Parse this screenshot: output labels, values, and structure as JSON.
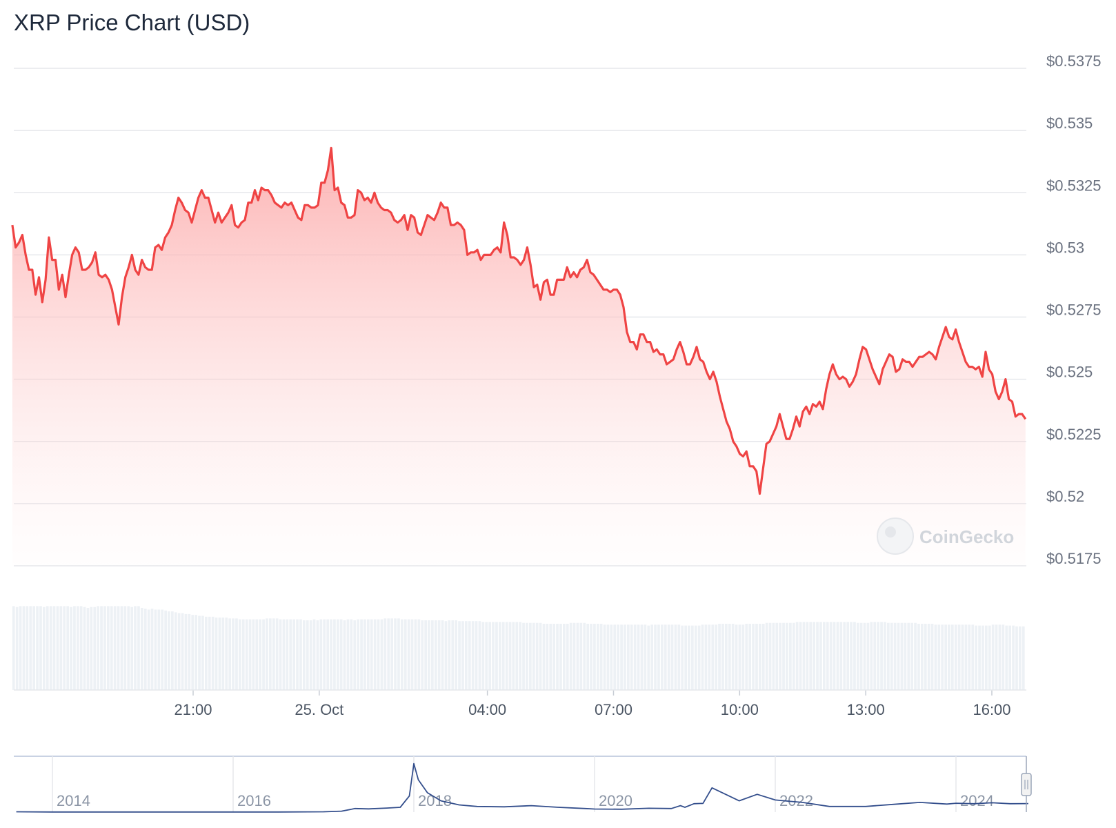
{
  "chart_data": {
    "type": "line",
    "title": "XRP Price Chart (USD)",
    "watermark": "CoinGecko",
    "ylim": [
      0.5175,
      0.5375
    ],
    "y_ticks": [
      "$0.5375",
      "$0.535",
      "$0.5325",
      "$0.53",
      "$0.5275",
      "$0.525",
      "$0.5225",
      "$0.52",
      "$0.5175"
    ],
    "x_range_hours": [
      -4.3,
      19.8
    ],
    "x_ticks": [
      {
        "label": "21:00",
        "hour": 21
      },
      {
        "label": "25. Oct",
        "hour": 24
      },
      {
        "label": "04:00",
        "hour": 28
      },
      {
        "label": "07:00",
        "hour": 31
      },
      {
        "label": "10:00",
        "hour": 34
      },
      {
        "label": "13:00",
        "hour": 37
      },
      {
        "label": "16:00",
        "hour": 40
      }
    ],
    "x_start_hour": 16.7,
    "x_end_hour": 40.8,
    "colors": {
      "line": "#ef4444",
      "fill": "#fecaca",
      "grid": "#e5e7eb",
      "volume": "#edf1f5",
      "navigator": "#334e8c"
    },
    "series": [
      {
        "values": [
          0.5312,
          0.5303,
          0.5305,
          0.5308,
          0.53,
          0.5294,
          0.5294,
          0.5284,
          0.5291,
          0.5281,
          0.529,
          0.5307,
          0.5298,
          0.5298,
          0.5286,
          0.5292,
          0.5283,
          0.5292,
          0.53,
          0.5303,
          0.5301,
          0.5294,
          0.5294,
          0.5295,
          0.5297,
          0.5301,
          0.5292,
          0.5291,
          0.5292,
          0.529,
          0.5286,
          0.5279,
          0.5272,
          0.5283,
          0.5291,
          0.5295,
          0.53,
          0.5294,
          0.5292,
          0.5298,
          0.5295,
          0.5294,
          0.5294,
          0.5303,
          0.5304,
          0.5302,
          0.5307,
          0.5309,
          0.5312,
          0.5318,
          0.5323,
          0.5321,
          0.5318,
          0.5317,
          0.5313,
          0.5318,
          0.5323,
          0.5326,
          0.5323,
          0.5323,
          0.5318,
          0.5313,
          0.5317,
          0.5313,
          0.5315,
          0.5317,
          0.532,
          0.5312,
          0.5311,
          0.5313,
          0.5314,
          0.5321,
          0.5321,
          0.5326,
          0.5322,
          0.5327,
          0.5326,
          0.5326,
          0.5324,
          0.5321,
          0.532,
          0.5319,
          0.5321,
          0.532,
          0.5321,
          0.5318,
          0.5315,
          0.5314,
          0.532,
          0.532,
          0.5319,
          0.5319,
          0.532,
          0.5329,
          0.5329,
          0.5334,
          0.5343,
          0.5326,
          0.5327,
          0.5321,
          0.532,
          0.5315,
          0.5315,
          0.5316,
          0.5326,
          0.5325,
          0.5322,
          0.5323,
          0.5321,
          0.5325,
          0.5321,
          0.5319,
          0.5318,
          0.5318,
          0.5317,
          0.5314,
          0.5313,
          0.5314,
          0.5316,
          0.531,
          0.5316,
          0.5315,
          0.5309,
          0.5308,
          0.5312,
          0.5316,
          0.5315,
          0.5314,
          0.5317,
          0.5321,
          0.5319,
          0.5319,
          0.5312,
          0.5312,
          0.5313,
          0.5312,
          0.531,
          0.53,
          0.5301,
          0.5301,
          0.5302,
          0.5298,
          0.53,
          0.53,
          0.53,
          0.5302,
          0.5303,
          0.5301,
          0.5313,
          0.5308,
          0.5299,
          0.5299,
          0.5298,
          0.5296,
          0.5298,
          0.5303,
          0.5296,
          0.5287,
          0.5288,
          0.5282,
          0.5289,
          0.529,
          0.5284,
          0.5284,
          0.529,
          0.529,
          0.529,
          0.5295,
          0.5291,
          0.5293,
          0.5291,
          0.5294,
          0.5295,
          0.5298,
          0.5293,
          0.5292,
          0.529,
          0.5288,
          0.5286,
          0.5286,
          0.5285,
          0.5286,
          0.5286,
          0.5284,
          0.5279,
          0.5269,
          0.5265,
          0.5265,
          0.5262,
          0.5268,
          0.5268,
          0.5265,
          0.5265,
          0.5261,
          0.5262,
          0.526,
          0.526,
          0.5256,
          0.5257,
          0.5258,
          0.5262,
          0.5265,
          0.5261,
          0.5256,
          0.5256,
          0.5259,
          0.5263,
          0.5258,
          0.5257,
          0.5253,
          0.525,
          0.5253,
          0.5249,
          0.5243,
          0.5238,
          0.5233,
          0.523,
          0.5225,
          0.5223,
          0.522,
          0.5219,
          0.5221,
          0.5215,
          0.5215,
          0.5213,
          0.5204,
          0.5214,
          0.5224,
          0.5225,
          0.5228,
          0.5231,
          0.5236,
          0.5231,
          0.5226,
          0.5226,
          0.523,
          0.5235,
          0.5231,
          0.5237,
          0.5239,
          0.5236,
          0.524,
          0.5239,
          0.5241,
          0.5238,
          0.5246,
          0.5252,
          0.5256,
          0.5252,
          0.525,
          0.5251,
          0.525,
          0.5247,
          0.5249,
          0.5252,
          0.5258,
          0.5263,
          0.5262,
          0.5258,
          0.5254,
          0.5251,
          0.5248,
          0.5254,
          0.5257,
          0.526,
          0.5259,
          0.5253,
          0.5254,
          0.5258,
          0.5257,
          0.5257,
          0.5255,
          0.5257,
          0.5259,
          0.5259,
          0.526,
          0.5261,
          0.526,
          0.5258,
          0.5263,
          0.5267,
          0.5271,
          0.5267,
          0.5266,
          0.527,
          0.5265,
          0.5261,
          0.5257,
          0.5255,
          0.5255,
          0.5254,
          0.5255,
          0.5251,
          0.5261,
          0.5254,
          0.5252,
          0.5245,
          0.5242,
          0.5245,
          0.525,
          0.5242,
          0.5241,
          0.5235,
          0.5236,
          0.5236,
          0.5234
        ]
      }
    ],
    "volume": {
      "values": [
        0.95,
        0.94,
        0.95,
        0.95,
        0.95,
        0.95,
        0.95,
        0.95,
        0.95,
        0.94,
        0.95,
        0.95,
        0.95,
        0.95,
        0.95,
        0.95,
        0.95,
        0.94,
        0.95,
        0.95,
        0.95,
        0.94,
        0.93,
        0.94,
        0.94,
        0.95,
        0.95,
        0.95,
        0.95,
        0.95,
        0.95,
        0.95,
        0.95,
        0.95,
        0.95,
        0.94,
        0.95,
        0.95,
        0.93,
        0.92,
        0.91,
        0.92,
        0.91,
        0.91,
        0.91,
        0.9,
        0.89,
        0.89,
        0.88,
        0.87,
        0.87,
        0.86,
        0.86,
        0.85,
        0.85,
        0.84,
        0.84,
        0.83,
        0.83,
        0.83,
        0.82,
        0.82,
        0.82,
        0.82,
        0.81,
        0.81,
        0.81,
        0.8,
        0.8,
        0.8,
        0.8,
        0.8,
        0.8,
        0.8,
        0.8,
        0.81,
        0.81,
        0.81,
        0.81,
        0.8,
        0.8,
        0.8,
        0.8,
        0.8,
        0.8,
        0.8,
        0.79,
        0.79,
        0.79,
        0.8,
        0.79,
        0.8,
        0.8,
        0.8,
        0.8,
        0.8,
        0.8,
        0.8,
        0.79,
        0.8,
        0.8,
        0.79,
        0.8,
        0.8,
        0.8,
        0.8,
        0.8,
        0.8,
        0.8,
        0.8,
        0.81,
        0.81,
        0.81,
        0.81,
        0.81,
        0.8,
        0.8,
        0.8,
        0.8,
        0.8,
        0.8,
        0.79,
        0.79,
        0.79,
        0.79,
        0.79,
        0.79,
        0.79,
        0.78,
        0.79,
        0.79,
        0.79,
        0.78,
        0.78,
        0.78,
        0.78,
        0.78,
        0.78,
        0.78,
        0.77,
        0.77,
        0.77,
        0.77,
        0.77,
        0.77,
        0.77,
        0.77,
        0.77,
        0.77,
        0.77,
        0.77,
        0.76,
        0.76,
        0.76,
        0.76,
        0.76,
        0.76,
        0.75,
        0.75,
        0.75,
        0.75,
        0.75,
        0.75,
        0.75,
        0.75,
        0.76,
        0.76,
        0.76,
        0.76,
        0.76,
        0.75,
        0.75,
        0.75,
        0.75,
        0.75,
        0.74,
        0.74,
        0.74,
        0.74,
        0.74,
        0.74,
        0.74,
        0.74,
        0.74,
        0.74,
        0.74,
        0.74,
        0.74,
        0.73,
        0.74,
        0.74,
        0.74,
        0.74,
        0.74,
        0.74,
        0.74,
        0.74,
        0.74,
        0.73,
        0.73,
        0.73,
        0.73,
        0.73,
        0.73,
        0.74,
        0.74,
        0.74,
        0.74,
        0.74,
        0.75,
        0.75,
        0.75,
        0.75,
        0.75,
        0.74,
        0.74,
        0.74,
        0.75,
        0.75,
        0.75,
        0.75,
        0.75,
        0.75,
        0.76,
        0.76,
        0.76,
        0.76,
        0.76,
        0.76,
        0.76,
        0.76,
        0.76,
        0.77,
        0.77,
        0.77,
        0.77,
        0.77,
        0.77,
        0.77,
        0.77,
        0.77,
        0.77,
        0.77,
        0.77,
        0.77,
        0.77,
        0.77,
        0.77,
        0.77,
        0.77,
        0.76,
        0.76,
        0.76,
        0.76,
        0.77,
        0.77,
        0.77,
        0.77,
        0.77,
        0.76,
        0.76,
        0.76,
        0.76,
        0.76,
        0.76,
        0.76,
        0.76,
        0.76,
        0.75,
        0.75,
        0.75,
        0.75,
        0.75,
        0.74,
        0.74,
        0.74,
        0.74,
        0.74,
        0.74,
        0.74,
        0.74,
        0.74,
        0.74,
        0.74,
        0.74,
        0.73,
        0.73,
        0.73,
        0.73,
        0.73,
        0.74,
        0.74,
        0.74,
        0.74,
        0.73,
        0.73,
        0.73,
        0.72,
        0.72,
        0.72
      ]
    },
    "navigator": {
      "x_ticks": [
        {
          "label": "2014",
          "year": 2014
        },
        {
          "label": "2016",
          "year": 2016
        },
        {
          "label": "2018",
          "year": 2018
        },
        {
          "label": "2020",
          "year": 2020
        },
        {
          "label": "2022",
          "year": 2022
        },
        {
          "label": "2024",
          "year": 2024
        }
      ],
      "x_range_years": [
        2013.6,
        2024.8
      ],
      "years": [
        2013.6,
        2014.0,
        2014.5,
        2015.0,
        2015.5,
        2016.0,
        2016.5,
        2017.0,
        2017.2,
        2017.35,
        2017.5,
        2017.7,
        2017.85,
        2017.95,
        2018.0,
        2018.05,
        2018.15,
        2018.3,
        2018.5,
        2018.7,
        2019.0,
        2019.3,
        2019.6,
        2019.9,
        2020.0,
        2020.3,
        2020.6,
        2020.85,
        2020.95,
        2021.0,
        2021.1,
        2021.2,
        2021.3,
        2021.45,
        2021.6,
        2021.8,
        2022.0,
        2022.3,
        2022.6,
        2023.0,
        2023.3,
        2023.6,
        2023.9,
        2024.0,
        2024.2,
        2024.4,
        2024.6,
        2024.8
      ],
      "prices": [
        0.02,
        0.01,
        0.01,
        0.01,
        0.01,
        0.01,
        0.01,
        0.02,
        0.06,
        0.22,
        0.2,
        0.25,
        0.3,
        1.0,
        3.0,
        2.0,
        1.2,
        0.7,
        0.45,
        0.35,
        0.33,
        0.4,
        0.3,
        0.22,
        0.19,
        0.18,
        0.24,
        0.22,
        0.4,
        0.3,
        0.52,
        0.54,
        1.5,
        1.1,
        0.7,
        1.1,
        0.75,
        0.6,
        0.35,
        0.35,
        0.48,
        0.6,
        0.5,
        0.55,
        0.52,
        0.58,
        0.52,
        0.53
      ],
      "y_max": 3.2
    }
  }
}
